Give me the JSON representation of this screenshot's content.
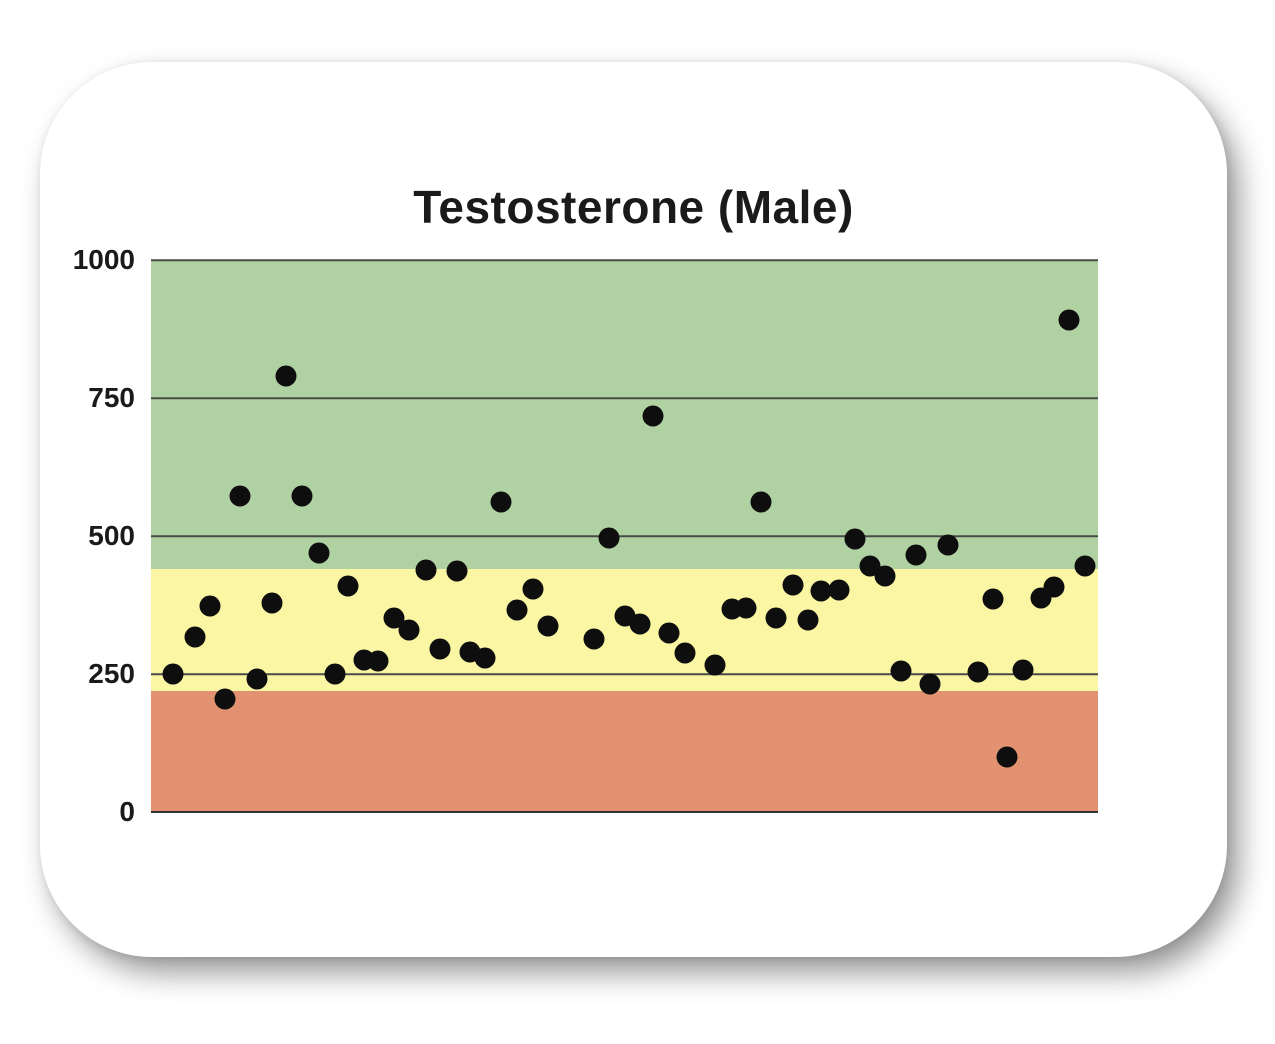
{
  "card": {
    "background": "#ffffff"
  },
  "colors": {
    "title": "#1a1a1a",
    "tick_label": "#1a1a1a",
    "gridline": "#4a4a4a",
    "axis": "#333333",
    "point": "#0e0e0e",
    "band_green": "#b0d2a3",
    "band_yellow": "#faf6a3",
    "band_red": "#e29271"
  },
  "chart_data": {
    "type": "scatter",
    "title": "Testosterone (Male)",
    "xlabel": "",
    "ylabel": "",
    "ylim": [
      0,
      1000
    ],
    "yticks": [
      0,
      250,
      500,
      750,
      1000
    ],
    "x_tick_labels": "none",
    "legend": "none",
    "grid": true,
    "x_unit": "percent_of_plot_width",
    "bands": [
      {
        "name": "green",
        "from": 440,
        "to": 1000,
        "color": "#b0d2a3"
      },
      {
        "name": "yellow",
        "from": 220,
        "to": 440,
        "color": "#faf6a3"
      },
      {
        "name": "red",
        "from": 0,
        "to": 220,
        "color": "#e29271"
      }
    ],
    "points": [
      {
        "x": 2.3,
        "y": 250
      },
      {
        "x": 4.6,
        "y": 317
      },
      {
        "x": 6.2,
        "y": 373
      },
      {
        "x": 7.8,
        "y": 204
      },
      {
        "x": 9.4,
        "y": 573
      },
      {
        "x": 11.2,
        "y": 241
      },
      {
        "x": 12.8,
        "y": 379
      },
      {
        "x": 14.3,
        "y": 789
      },
      {
        "x": 15.9,
        "y": 573
      },
      {
        "x": 17.7,
        "y": 470
      },
      {
        "x": 19.4,
        "y": 250
      },
      {
        "x": 20.8,
        "y": 410
      },
      {
        "x": 22.5,
        "y": 275
      },
      {
        "x": 24.0,
        "y": 273
      },
      {
        "x": 25.7,
        "y": 352
      },
      {
        "x": 27.2,
        "y": 330
      },
      {
        "x": 29.0,
        "y": 439
      },
      {
        "x": 30.5,
        "y": 296
      },
      {
        "x": 32.3,
        "y": 437
      },
      {
        "x": 33.7,
        "y": 290
      },
      {
        "x": 35.3,
        "y": 279
      },
      {
        "x": 37.0,
        "y": 562
      },
      {
        "x": 38.6,
        "y": 366
      },
      {
        "x": 40.3,
        "y": 404
      },
      {
        "x": 41.9,
        "y": 337
      },
      {
        "x": 46.8,
        "y": 314
      },
      {
        "x": 48.4,
        "y": 496
      },
      {
        "x": 50.0,
        "y": 355
      },
      {
        "x": 51.6,
        "y": 340
      },
      {
        "x": 53.0,
        "y": 718
      },
      {
        "x": 54.7,
        "y": 325
      },
      {
        "x": 56.4,
        "y": 288
      },
      {
        "x": 59.6,
        "y": 267
      },
      {
        "x": 61.4,
        "y": 367
      },
      {
        "x": 62.8,
        "y": 370
      },
      {
        "x": 64.4,
        "y": 562
      },
      {
        "x": 66.0,
        "y": 352
      },
      {
        "x": 67.8,
        "y": 412
      },
      {
        "x": 69.4,
        "y": 347
      },
      {
        "x": 70.8,
        "y": 400
      },
      {
        "x": 72.6,
        "y": 402
      },
      {
        "x": 74.3,
        "y": 494
      },
      {
        "x": 75.9,
        "y": 446
      },
      {
        "x": 77.5,
        "y": 427
      },
      {
        "x": 79.2,
        "y": 256
      },
      {
        "x": 80.8,
        "y": 466
      },
      {
        "x": 82.3,
        "y": 232
      },
      {
        "x": 84.2,
        "y": 484
      },
      {
        "x": 87.3,
        "y": 254
      },
      {
        "x": 88.9,
        "y": 386
      },
      {
        "x": 90.4,
        "y": 100
      },
      {
        "x": 92.1,
        "y": 257
      },
      {
        "x": 94.0,
        "y": 387
      },
      {
        "x": 95.4,
        "y": 407
      },
      {
        "x": 96.9,
        "y": 891
      },
      {
        "x": 98.6,
        "y": 445
      }
    ]
  }
}
